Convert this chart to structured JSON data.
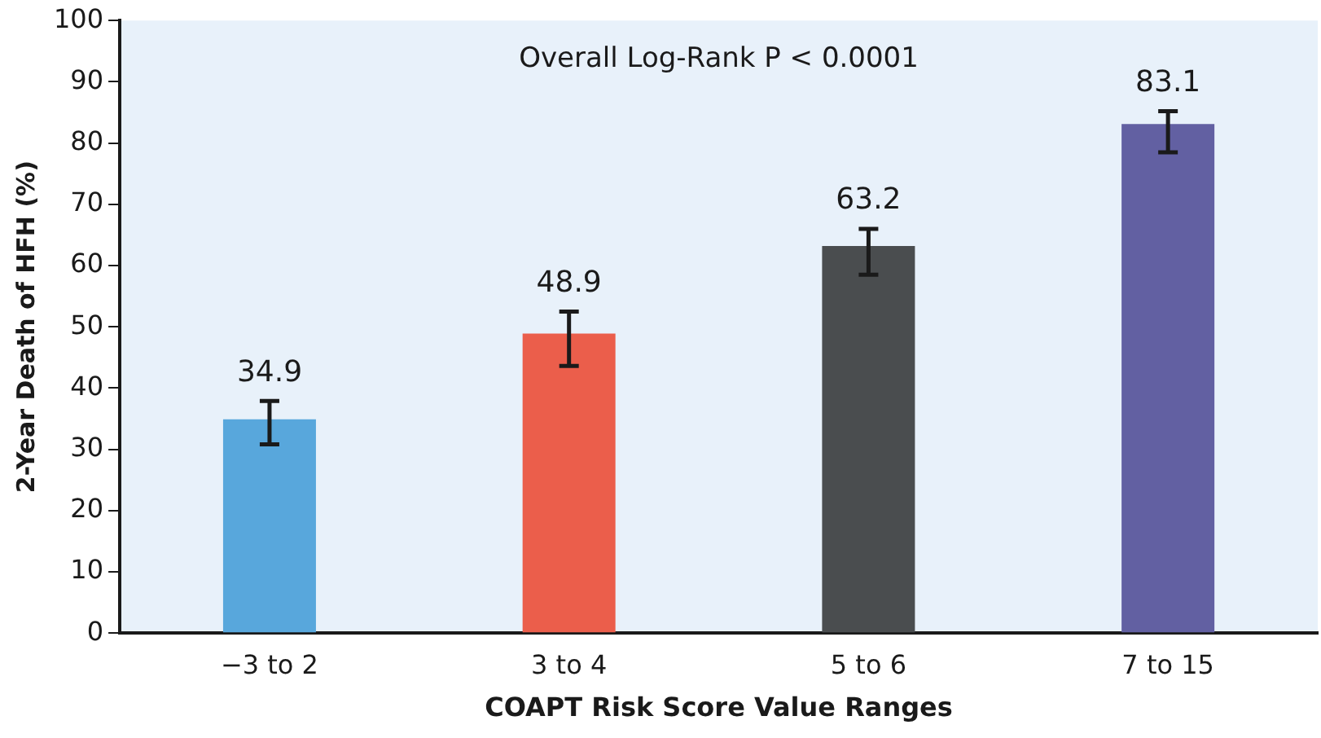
{
  "chart_data": {
    "type": "bar",
    "xlabel": "COAPT Risk Score Value Ranges",
    "ylabel": "2-Year Death of HFH (%)",
    "categories": [
      "−3 to 2",
      "3 to 4",
      "5 to 6",
      "7 to 15"
    ],
    "values": [
      34.9,
      48.9,
      63.2,
      83.1
    ],
    "colors": [
      "#58a7dc",
      "#eb5e4b",
      "#4a4d4f",
      "#6260a2"
    ],
    "errors": [
      [
        30.8,
        37.9
      ],
      [
        43.6,
        52.5
      ],
      [
        58.5,
        66
      ],
      [
        78.5,
        85.2
      ]
    ],
    "ylim": [
      0,
      100
    ],
    "yticks": [
      0,
      10,
      20,
      30,
      40,
      50,
      60,
      70,
      80,
      90,
      100
    ],
    "grid": false,
    "legend": false,
    "data_labels": true,
    "annotations": [
      "Overall Log-Rank P < 0.0001"
    ]
  }
}
